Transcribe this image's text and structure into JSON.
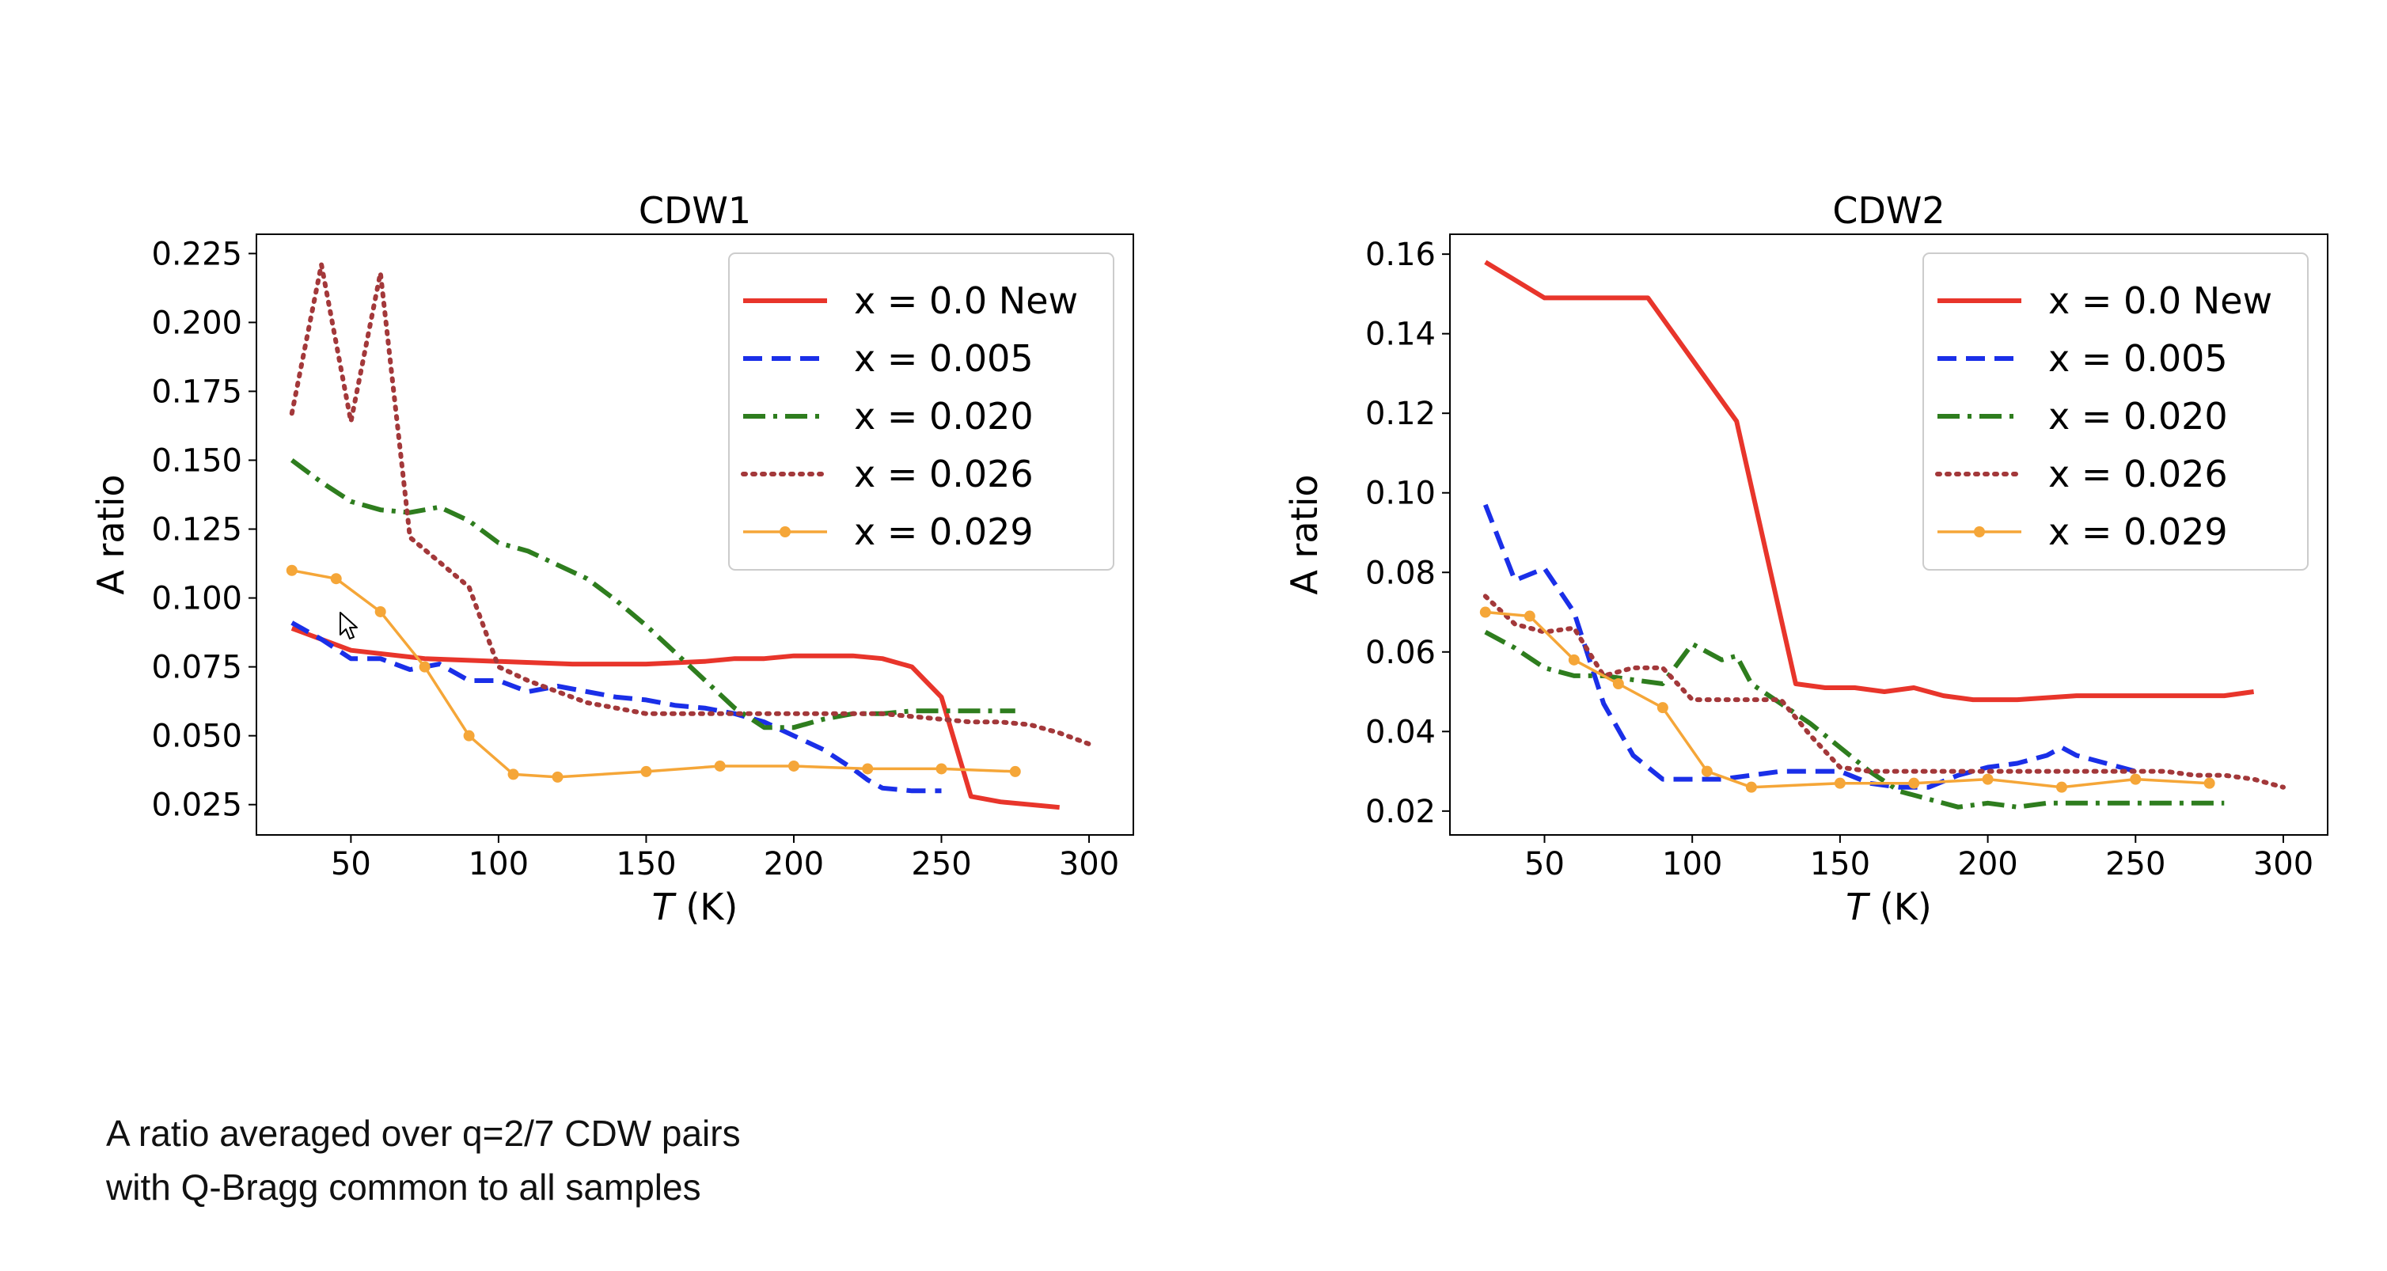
{
  "caption": {
    "line1": "A ratio averaged over q=2/7 CDW pairs",
    "line2": "with Q-Bragg common to all samples"
  },
  "style": {
    "colors": {
      "x = 0.0 New": "#e8352b",
      "x = 0.005": "#1a2fe8",
      "x = 0.020": "#2e7d1e",
      "x = 0.026": "#a3383a",
      "x = 0.029": "#f5a638"
    }
  },
  "cursor_icon": "mouse-pointer-icon",
  "chart_data": [
    {
      "type": "line",
      "title": "CDW1",
      "xlabel": "T (K)",
      "ylabel": "A ratio",
      "xlim": [
        18,
        315
      ],
      "ylim": [
        0.014,
        0.232
      ],
      "xticks": [
        50,
        100,
        150,
        200,
        250,
        300
      ],
      "yticks": [
        0.025,
        0.05,
        0.075,
        0.1,
        0.125,
        0.15,
        0.175,
        0.2,
        0.225
      ],
      "ytick_labels": [
        "0.025",
        "0.050",
        "0.075",
        "0.100",
        "0.125",
        "0.150",
        "0.175",
        "0.200",
        "0.225"
      ],
      "legend_position": "upper right",
      "series": [
        {
          "name": "x = 0.0 New",
          "style": "solid",
          "x": [
            30,
            50,
            75,
            100,
            125,
            150,
            170,
            180,
            190,
            200,
            210,
            220,
            230,
            240,
            250,
            260,
            270,
            290
          ],
          "y": [
            0.089,
            0.081,
            0.078,
            0.077,
            0.076,
            0.076,
            0.077,
            0.078,
            0.078,
            0.079,
            0.079,
            0.079,
            0.078,
            0.075,
            0.064,
            0.028,
            0.026,
            0.024
          ]
        },
        {
          "name": "x = 0.005",
          "style": "dashed",
          "x": [
            30,
            40,
            50,
            60,
            70,
            80,
            90,
            100,
            110,
            120,
            130,
            140,
            150,
            160,
            170,
            180,
            190,
            200,
            210,
            220,
            225,
            230,
            240,
            250
          ],
          "y": [
            0.091,
            0.085,
            0.078,
            0.078,
            0.074,
            0.076,
            0.07,
            0.07,
            0.066,
            0.068,
            0.066,
            0.064,
            0.063,
            0.061,
            0.06,
            0.058,
            0.055,
            0.05,
            0.045,
            0.038,
            0.034,
            0.031,
            0.03,
            0.03
          ]
        },
        {
          "name": "x = 0.020",
          "style": "dashdot",
          "x": [
            30,
            40,
            50,
            60,
            70,
            80,
            90,
            100,
            110,
            120,
            130,
            140,
            150,
            160,
            170,
            180,
            190,
            200,
            210,
            220,
            230,
            240,
            250,
            260,
            270,
            275
          ],
          "y": [
            0.15,
            0.142,
            0.135,
            0.132,
            0.131,
            0.133,
            0.128,
            0.12,
            0.117,
            0.112,
            0.107,
            0.099,
            0.09,
            0.08,
            0.07,
            0.06,
            0.053,
            0.053,
            0.056,
            0.058,
            0.058,
            0.059,
            0.059,
            0.059,
            0.059,
            0.059
          ]
        },
        {
          "name": "x = 0.026",
          "style": "dotted",
          "x": [
            30,
            40,
            50,
            60,
            70,
            80,
            90,
            100,
            110,
            120,
            130,
            140,
            150,
            160,
            170,
            180,
            190,
            200,
            210,
            220,
            230,
            240,
            250,
            260,
            270,
            280,
            290,
            300
          ],
          "y": [
            0.167,
            0.221,
            0.164,
            0.218,
            0.122,
            0.113,
            0.104,
            0.075,
            0.07,
            0.066,
            0.062,
            0.06,
            0.058,
            0.058,
            0.058,
            0.058,
            0.058,
            0.058,
            0.058,
            0.058,
            0.058,
            0.057,
            0.056,
            0.055,
            0.055,
            0.054,
            0.051,
            0.047
          ]
        },
        {
          "name": "x = 0.029",
          "style": "solid-marker",
          "x": [
            30,
            45,
            60,
            75,
            90,
            105,
            120,
            150,
            175,
            200,
            225,
            250,
            275
          ],
          "y": [
            0.11,
            0.107,
            0.095,
            0.075,
            0.05,
            0.036,
            0.035,
            0.037,
            0.039,
            0.039,
            0.038,
            0.038,
            0.037
          ]
        }
      ]
    },
    {
      "type": "line",
      "title": "CDW2",
      "xlabel": "T (K)",
      "ylabel": "A ratio",
      "xlim": [
        18,
        315
      ],
      "ylim": [
        0.014,
        0.165
      ],
      "xticks": [
        50,
        100,
        150,
        200,
        250,
        300
      ],
      "yticks": [
        0.02,
        0.04,
        0.06,
        0.08,
        0.1,
        0.12,
        0.14,
        0.16
      ],
      "ytick_labels": [
        "0.02",
        "0.04",
        "0.06",
        "0.08",
        "0.10",
        "0.12",
        "0.14",
        "0.16"
      ],
      "legend_position": "upper right",
      "series": [
        {
          "name": "x = 0.0 New",
          "style": "solid",
          "x": [
            30,
            50,
            85,
            115,
            135,
            145,
            155,
            165,
            175,
            185,
            195,
            210,
            230,
            240,
            250,
            260,
            270,
            280,
            290
          ],
          "y": [
            0.158,
            0.149,
            0.149,
            0.118,
            0.052,
            0.051,
            0.051,
            0.05,
            0.051,
            0.049,
            0.048,
            0.048,
            0.049,
            0.049,
            0.049,
            0.049,
            0.049,
            0.049,
            0.05
          ]
        },
        {
          "name": "x = 0.005",
          "style": "dashed",
          "x": [
            30,
            40,
            50,
            60,
            70,
            80,
            90,
            100,
            110,
            120,
            130,
            140,
            150,
            160,
            170,
            180,
            190,
            200,
            210,
            220,
            225,
            230,
            240,
            250
          ],
          "y": [
            0.097,
            0.078,
            0.081,
            0.07,
            0.047,
            0.034,
            0.028,
            0.028,
            0.028,
            0.029,
            0.03,
            0.03,
            0.03,
            0.027,
            0.026,
            0.026,
            0.029,
            0.031,
            0.032,
            0.034,
            0.036,
            0.034,
            0.032,
            0.03
          ]
        },
        {
          "name": "x = 0.020",
          "style": "dashdot",
          "x": [
            30,
            40,
            50,
            60,
            70,
            80,
            90,
            100,
            110,
            115,
            120,
            130,
            140,
            150,
            160,
            170,
            180,
            190,
            200,
            210,
            220,
            230,
            240,
            250,
            260,
            270,
            280
          ],
          "y": [
            0.065,
            0.061,
            0.056,
            0.054,
            0.054,
            0.053,
            0.052,
            0.062,
            0.058,
            0.059,
            0.052,
            0.047,
            0.042,
            0.036,
            0.03,
            0.025,
            0.023,
            0.021,
            0.022,
            0.021,
            0.022,
            0.022,
            0.022,
            0.022,
            0.022,
            0.022,
            0.022
          ]
        },
        {
          "name": "x = 0.026",
          "style": "dotted",
          "x": [
            30,
            40,
            50,
            60,
            70,
            80,
            90,
            100,
            110,
            120,
            130,
            140,
            150,
            160,
            170,
            180,
            190,
            200,
            210,
            220,
            230,
            240,
            250,
            260,
            270,
            280,
            290,
            300
          ],
          "y": [
            0.074,
            0.067,
            0.065,
            0.066,
            0.054,
            0.056,
            0.056,
            0.048,
            0.048,
            0.048,
            0.048,
            0.039,
            0.031,
            0.03,
            0.03,
            0.03,
            0.03,
            0.03,
            0.03,
            0.03,
            0.03,
            0.03,
            0.03,
            0.03,
            0.029,
            0.029,
            0.028,
            0.026
          ]
        },
        {
          "name": "x = 0.029",
          "style": "solid-marker",
          "x": [
            30,
            45,
            60,
            75,
            90,
            105,
            120,
            150,
            175,
            200,
            225,
            250,
            275
          ],
          "y": [
            0.07,
            0.069,
            0.058,
            0.052,
            0.046,
            0.03,
            0.026,
            0.027,
            0.027,
            0.028,
            0.026,
            0.028,
            0.027
          ]
        }
      ]
    }
  ]
}
